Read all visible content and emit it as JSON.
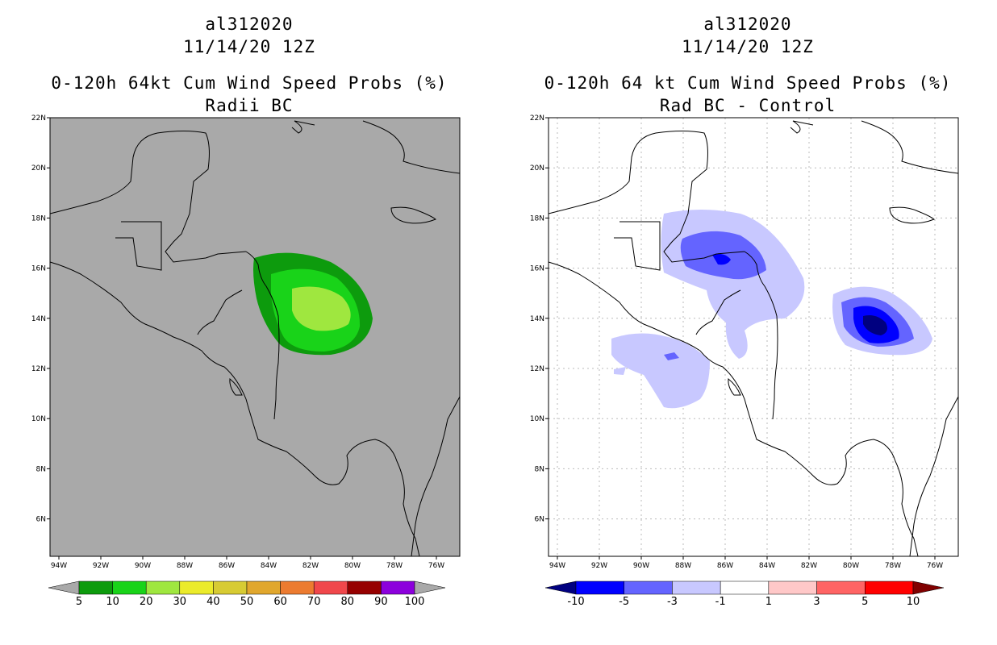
{
  "left_panel": {
    "title_line1": "al312020",
    "title_line2": "11/14/20 12Z",
    "title_line3": "0-120h 64kt Cum Wind Speed Probs (%)",
    "title_line4": "Radii BC",
    "background_color": "#a9a9a9",
    "colorbar": {
      "labels": [
        "5",
        "10",
        "20",
        "30",
        "40",
        "50",
        "60",
        "70",
        "80",
        "90",
        "100"
      ],
      "colors": [
        "#a9a9a9",
        "#0d9b0d",
        "#19d319",
        "#9fe73f",
        "#ebeb2b",
        "#d7cb33",
        "#e1a72d",
        "#ec7b30",
        "#f0474b",
        "#960000",
        "#8c00dc",
        "#a9a9a9"
      ]
    }
  },
  "right_panel": {
    "title_line1": "al312020",
    "title_line2": "11/14/20 12Z",
    "title_line3": "0-120h 64 kt Cum Wind Speed Probs (%)",
    "title_line4": "Rad BC - Control",
    "background_color": "#ffffff",
    "colorbar": {
      "labels": [
        "-10",
        "-5",
        "-3",
        "-1",
        "1",
        "3",
        "5",
        "10"
      ],
      "colors": [
        "#000080",
        "#0000ff",
        "#6464ff",
        "#c8c8ff",
        "#ffffff",
        "#ffc8c8",
        "#ff6464",
        "#ff0000",
        "#800000"
      ]
    }
  },
  "axes": {
    "lat_labels": [
      "22N",
      "20N",
      "18N",
      "16N",
      "14N",
      "12N",
      "10N",
      "8N",
      "6N"
    ],
    "lon_labels": [
      "94W",
      "92W",
      "90W",
      "88W",
      "86W",
      "84W",
      "82W",
      "80W",
      "78W",
      "76W"
    ]
  }
}
